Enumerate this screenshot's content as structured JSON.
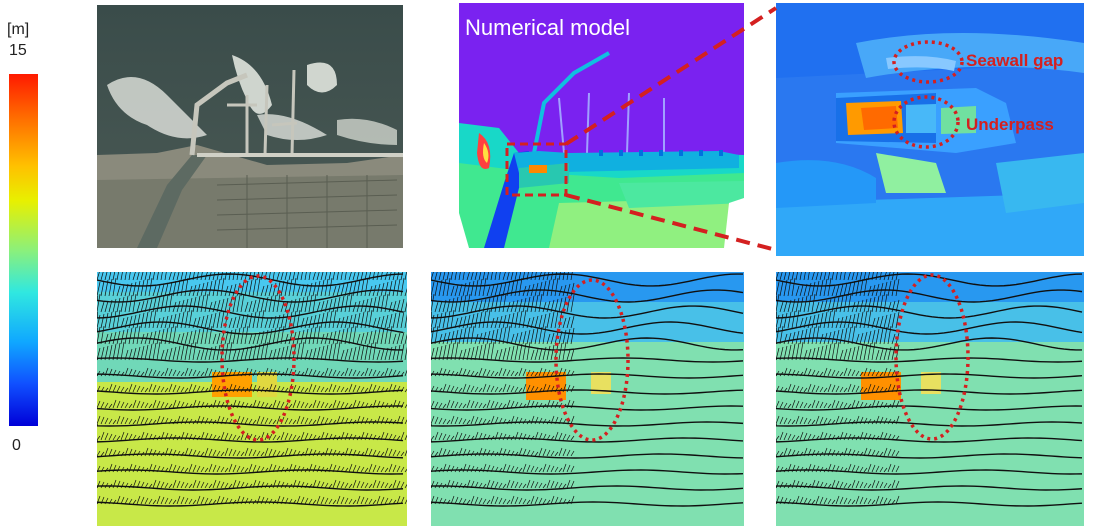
{
  "colorbar": {
    "unit": "[m]",
    "max_label": "15",
    "min_label": "0",
    "stops": [
      "#ff0000",
      "#ff7a00",
      "#ffe100",
      "#c8f000",
      "#3cffd0",
      "#00b4ff",
      "#0050ff",
      "#0000e0"
    ]
  },
  "panels": {
    "model": {
      "title": "Numerical model"
    },
    "zoom": {
      "seawall_label": "Seawall gap",
      "underpass_label": "Underpass"
    }
  },
  "colors": {
    "annotation_red": "#d42020",
    "sea_purple": "#7a22f0"
  }
}
